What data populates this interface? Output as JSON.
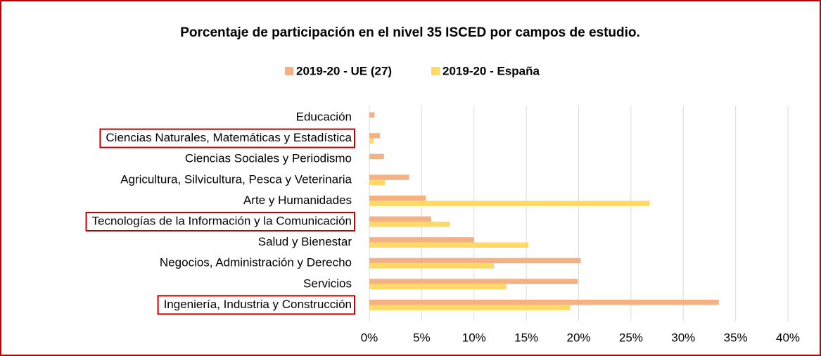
{
  "chart_data": {
    "type": "barh",
    "title": "Porcentaje de participación en el nivel 35 ISCED por campos de estudio.",
    "categories": [
      "Educación",
      "Ciencias Naturales, Matemáticas y Estadística",
      "Ciencias Sociales y Periodismo",
      "Agricultura, Silvicultura, Pesca y Veterinaria",
      "Arte y Humanidades",
      "Tecnologías de la Información y la Comunicación",
      "Salud y Bienestar",
      "Negocios, Administración y Derecho",
      "Servicios",
      "Ingeniería, Industria y Construcción"
    ],
    "series": [
      {
        "name": "2019-20 - UE (27)",
        "color": "#F4B183",
        "values": [
          0.5,
          1.0,
          1.4,
          3.8,
          5.4,
          5.9,
          10.0,
          20.2,
          19.9,
          33.4
        ]
      },
      {
        "name": "2019-20 - España",
        "color": "#FFD966",
        "values": [
          0,
          0.4,
          0,
          1.5,
          26.8,
          7.7,
          15.2,
          11.9,
          13.1,
          19.2
        ]
      }
    ],
    "xlim": [
      0,
      40
    ],
    "xticks": [
      {
        "value": 0,
        "label": "0%"
      },
      {
        "value": 5,
        "label": "5%"
      },
      {
        "value": 10,
        "label": "10%"
      },
      {
        "value": 15,
        "label": "15%"
      },
      {
        "value": 20,
        "label": "20%"
      },
      {
        "value": 25,
        "label": "25%"
      },
      {
        "value": 30,
        "label": "30%"
      },
      {
        "value": 35,
        "label": "35%"
      },
      {
        "value": 40,
        "label": "40%"
      }
    ],
    "grid": true
  }
}
